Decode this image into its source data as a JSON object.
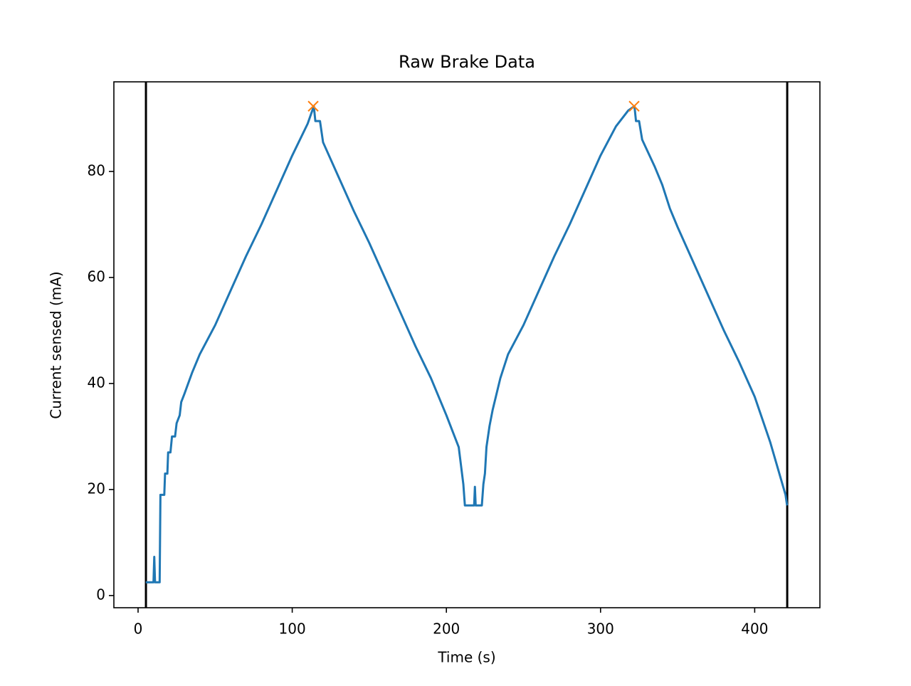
{
  "chart_data": {
    "type": "line",
    "title": "Raw Brake Data",
    "xlabel": "Time (s)",
    "ylabel": "Current sensed (mA)",
    "xlim": [
      -15.7,
      442.3
    ],
    "ylim": [
      -2.3,
      96.9
    ],
    "xticks": [
      0,
      100,
      200,
      300,
      400
    ],
    "yticks": [
      0,
      20,
      40,
      60,
      80
    ],
    "grid": false,
    "series": [
      {
        "color": "#1f77b4",
        "marker": "none",
        "x": [
          5,
          10,
          10.5,
          11,
          14,
          14.5,
          17,
          17.5,
          19,
          19.5,
          21,
          22,
          24,
          25,
          27,
          28,
          30,
          35,
          40,
          50,
          60,
          70,
          80,
          90,
          100,
          110,
          114,
          115,
          118,
          120,
          130,
          140,
          150,
          160,
          170,
          180,
          190,
          200,
          208,
          211,
          212,
          218,
          218.5,
          219,
          223,
          224,
          225,
          226,
          228,
          230,
          235,
          240,
          250,
          260,
          270,
          280,
          290,
          300,
          310,
          318,
          322,
          323,
          325,
          327,
          335,
          340,
          345,
          350,
          360,
          370,
          380,
          390,
          400,
          410,
          415,
          418,
          420,
          421
        ],
        "values": [
          2.5,
          2.5,
          7.3,
          2.5,
          2.5,
          19,
          19,
          23,
          23,
          27,
          27,
          30,
          30,
          32.5,
          34,
          36.5,
          38,
          42,
          45.5,
          51,
          57.5,
          64,
          70,
          76.5,
          83,
          89,
          92.3,
          89.5,
          89.5,
          85.5,
          79,
          72.5,
          66.5,
          60,
          53.5,
          47,
          41,
          34,
          28,
          21,
          17,
          17,
          20.5,
          17,
          17,
          21,
          23,
          28,
          32,
          35,
          41,
          45.5,
          51,
          57.5,
          64,
          70,
          76.5,
          83,
          88.5,
          91.5,
          92.3,
          89.5,
          89.5,
          86,
          81,
          77.5,
          73,
          69.5,
          63,
          56.5,
          50,
          44,
          37.5,
          29,
          24,
          21,
          19,
          17
        ]
      },
      {
        "color": "#ff7f0e",
        "marker": "x",
        "x": [
          113.6,
          321.8
        ],
        "values": [
          92.3,
          92.3
        ]
      }
    ],
    "vlines": {
      "color": "#000000",
      "values": [
        5.1,
        421.1
      ]
    }
  }
}
